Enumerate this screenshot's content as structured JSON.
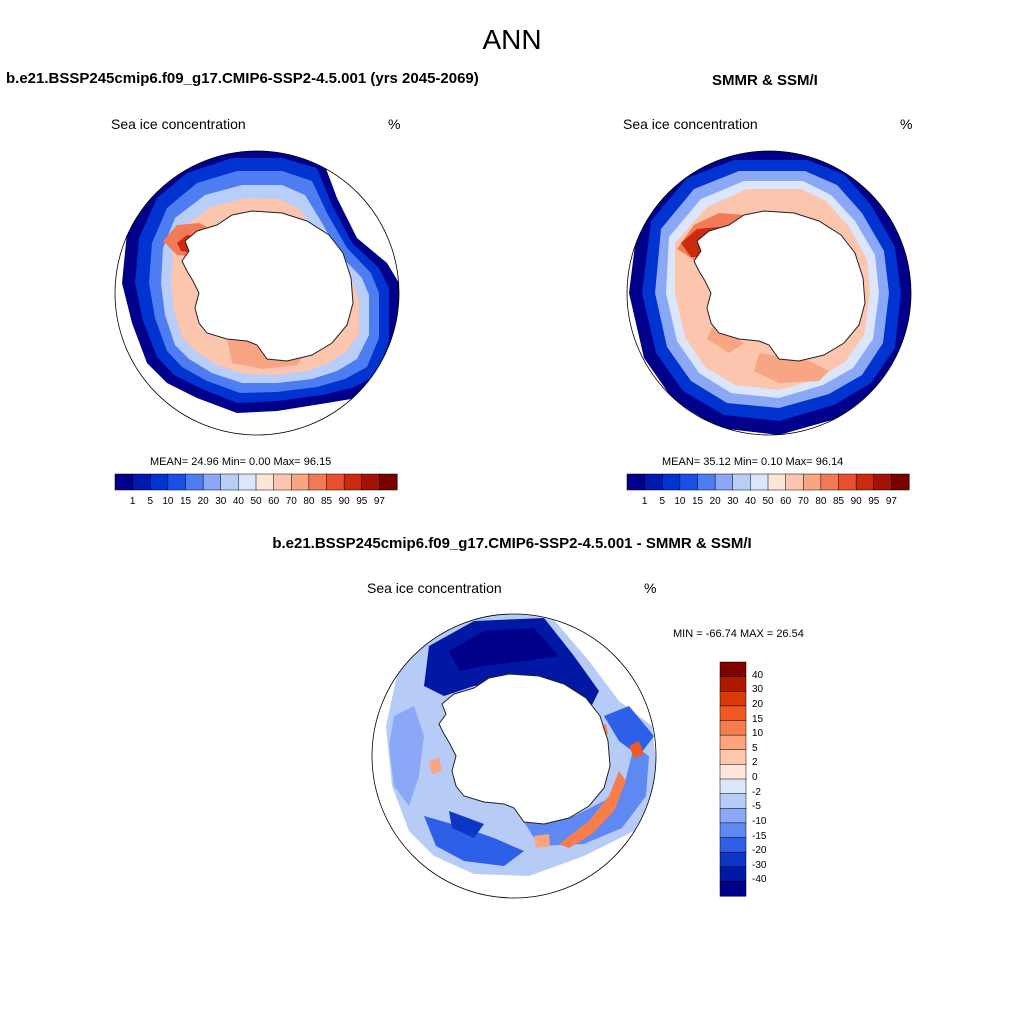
{
  "figure": {
    "title": "ANN"
  },
  "panels": {
    "model": {
      "title": "b.e21.BSSP245cmip6.f09_g17.CMIP6-SSP2-4.5.001 (yrs 2045-2069)",
      "left_label": "Sea ice concentration",
      "right_label": "%",
      "stats": "MEAN=  24.96  Min=   0.00  Max=  96.15"
    },
    "obs": {
      "title": "SMMR & SSM/I",
      "left_label": "Sea ice concentration",
      "right_label": "%",
      "stats": "MEAN=  35.12  Min=   0.10  Max=  96.14"
    },
    "diff": {
      "title": "b.e21.BSSP245cmip6.f09_g17.CMIP6-SSP2-4.5.001 - SMMR & SSM/I",
      "left_label": "Sea ice concentration",
      "right_label": "%",
      "stats": "MIN = -66.74 MAX =  26.54"
    }
  },
  "colorbar_conc": {
    "levels": [
      "1",
      "5",
      "10",
      "15",
      "20",
      "30",
      "40",
      "50",
      "60",
      "70",
      "80",
      "85",
      "90",
      "95",
      "97"
    ],
    "colors": [
      "#00008a",
      "#0018b0",
      "#0033d0",
      "#1a4fe8",
      "#4d7df0",
      "#8aa8f5",
      "#b8cdf7",
      "#dbe6fb",
      "#fde5d8",
      "#fcc5ad",
      "#f8a584",
      "#f47a57",
      "#e9502e",
      "#cc2a10",
      "#a31208",
      "#7a0000"
    ]
  },
  "colorbar_diff": {
    "levels": [
      "40",
      "30",
      "20",
      "15",
      "10",
      "5",
      "2",
      "0",
      "-2",
      "-5",
      "-10",
      "-15",
      "-20",
      "-30",
      "-40"
    ],
    "colors": [
      "#800000",
      "#b01800",
      "#d83a08",
      "#f05a22",
      "#f77e4c",
      "#fba47e",
      "#fdc7ad",
      "#fde7da",
      "#dbe6fb",
      "#b6cbf6",
      "#8aa8f5",
      "#5f89f2",
      "#2e5fe8",
      "#0c37c6",
      "#0018a4",
      "#00008a"
    ]
  },
  "chart_data": [
    {
      "type": "heatmap",
      "title": "b.e21.BSSP245cmip6.f09_g17.CMIP6-SSP2-4.5.001 (yrs 2045-2069)",
      "variable": "Sea ice concentration",
      "units": "%",
      "projection": "south-polar stereographic",
      "mean": 24.96,
      "min": 0.0,
      "max": 96.15,
      "levels": [
        1,
        5,
        10,
        15,
        20,
        30,
        40,
        50,
        60,
        70,
        80,
        85,
        90,
        95,
        97
      ]
    },
    {
      "type": "heatmap",
      "title": "SMMR & SSM/I",
      "variable": "Sea ice concentration",
      "units": "%",
      "projection": "south-polar stereographic",
      "mean": 35.12,
      "min": 0.1,
      "max": 96.14,
      "levels": [
        1,
        5,
        10,
        15,
        20,
        30,
        40,
        50,
        60,
        70,
        80,
        85,
        90,
        95,
        97
      ]
    },
    {
      "type": "heatmap",
      "title": "b.e21.BSSP245cmip6.f09_g17.CMIP6-SSP2-4.5.001 - SMMR & SSM/I",
      "variable": "Sea ice concentration",
      "units": "%",
      "projection": "south-polar stereographic",
      "min": -66.74,
      "max": 26.54,
      "levels": [
        40,
        30,
        20,
        15,
        10,
        5,
        2,
        0,
        -2,
        -5,
        -10,
        -15,
        -20,
        -30,
        -40
      ]
    }
  ]
}
